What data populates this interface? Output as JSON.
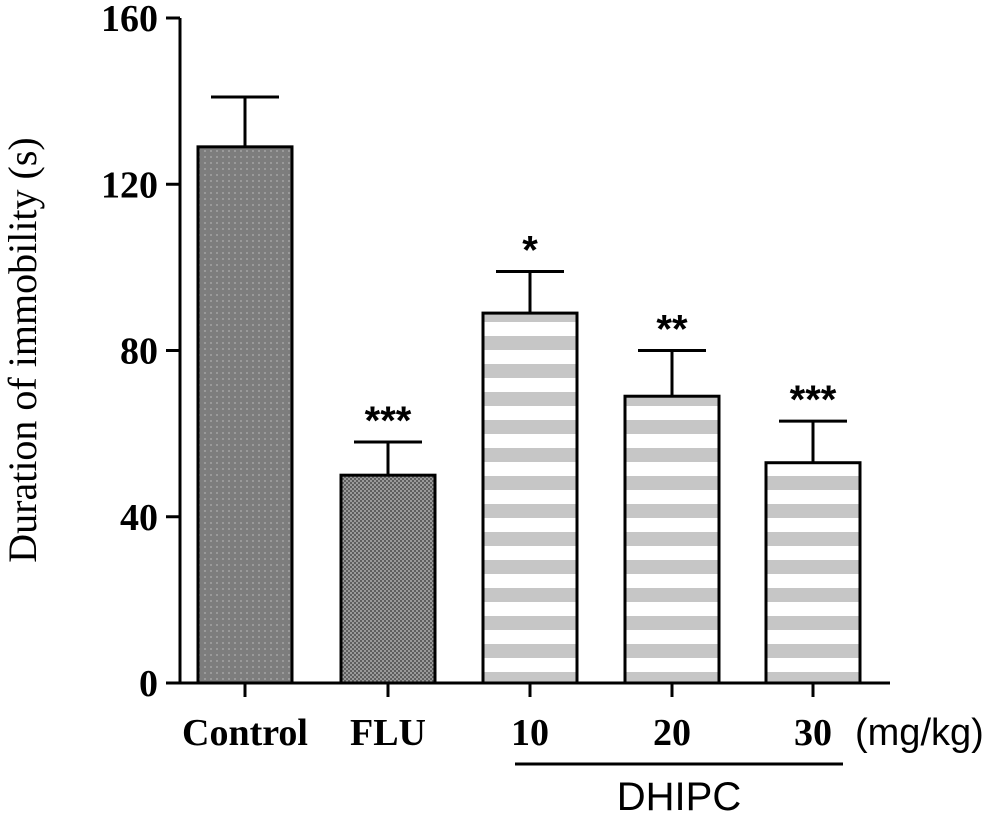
{
  "chart_data": {
    "type": "bar",
    "ylabel": "Duration of immobility (s)",
    "ylim": [
      0,
      160
    ],
    "yticks": [
      0,
      40,
      80,
      120,
      160
    ],
    "categories": [
      "Control",
      "FLU",
      "10",
      "20",
      "30"
    ],
    "values": [
      129,
      50,
      89,
      69,
      53
    ],
    "errors": [
      12,
      8,
      10,
      11,
      10
    ],
    "significance": [
      "",
      "***",
      "*",
      "**",
      "***"
    ],
    "unit_label": "(mg/kg)",
    "group_label": "DHIPC",
    "grid": false,
    "legend": "none",
    "colors": {
      "control": "#7a7a7a",
      "flu": "#8a8a8a",
      "dhipc_stripe": "#c4c4c4"
    }
  }
}
